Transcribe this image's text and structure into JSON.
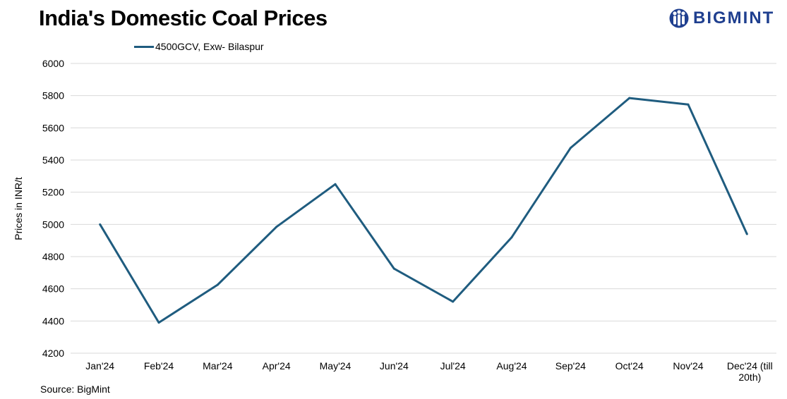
{
  "header": {
    "title": "India's Domestic Coal Prices",
    "brand": "BIGMINT",
    "logo_icon": "bigmint-people-icon"
  },
  "footer": {
    "source": "Source: BigMint"
  },
  "colors": {
    "line": "#1f5c7f",
    "brand": "#1f3f8f",
    "grid": "#d9d9d9"
  },
  "chart_data": {
    "type": "line",
    "title": "India's Domestic Coal Prices",
    "xlabel": "",
    "ylabel": "Prices in INR/t",
    "categories": [
      "Jan'24",
      "Feb'24",
      "Mar'24",
      "Apr'24",
      "May'24",
      "Jun'24",
      "Jul'24",
      "Aug'24",
      "Sep'24",
      "Oct'24",
      "Nov'24",
      "Dec'24 (till 20th)"
    ],
    "series": [
      {
        "name": "4500GCV, Exw- Bilaspur",
        "values": [
          5000,
          4390,
          4625,
          4985,
          5250,
          4725,
          4520,
          4920,
          5475,
          5785,
          5745,
          4940
        ]
      }
    ],
    "ylim": [
      4200,
      6000
    ],
    "yticks": [
      4200,
      4400,
      4600,
      4800,
      5000,
      5200,
      5400,
      5600,
      5800,
      6000
    ],
    "grid": true,
    "legend_position": "top-left"
  }
}
